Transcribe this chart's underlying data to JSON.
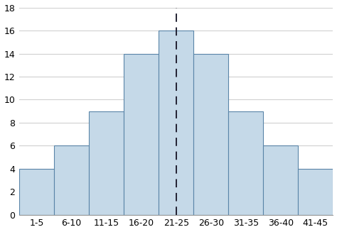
{
  "categories": [
    "1-5",
    "6-10",
    "11-15",
    "16-20",
    "21-25",
    "26-30",
    "31-35",
    "36-40",
    "41-45"
  ],
  "values": [
    4,
    6,
    9,
    14,
    16,
    14,
    9,
    6,
    4
  ],
  "bar_color": "#c5d9e8",
  "bar_edgecolor": "#5a85a8",
  "bar_linewidth": 0.8,
  "bar_width": 1.0,
  "ylim": [
    0,
    18
  ],
  "yticks": [
    0,
    2,
    4,
    6,
    8,
    10,
    12,
    14,
    16,
    18
  ],
  "dashed_line_x": 4,
  "dashed_line_color": "#222233",
  "background_color": "#ffffff",
  "grid_color": "#d0d0d0",
  "tick_fontsize": 9
}
